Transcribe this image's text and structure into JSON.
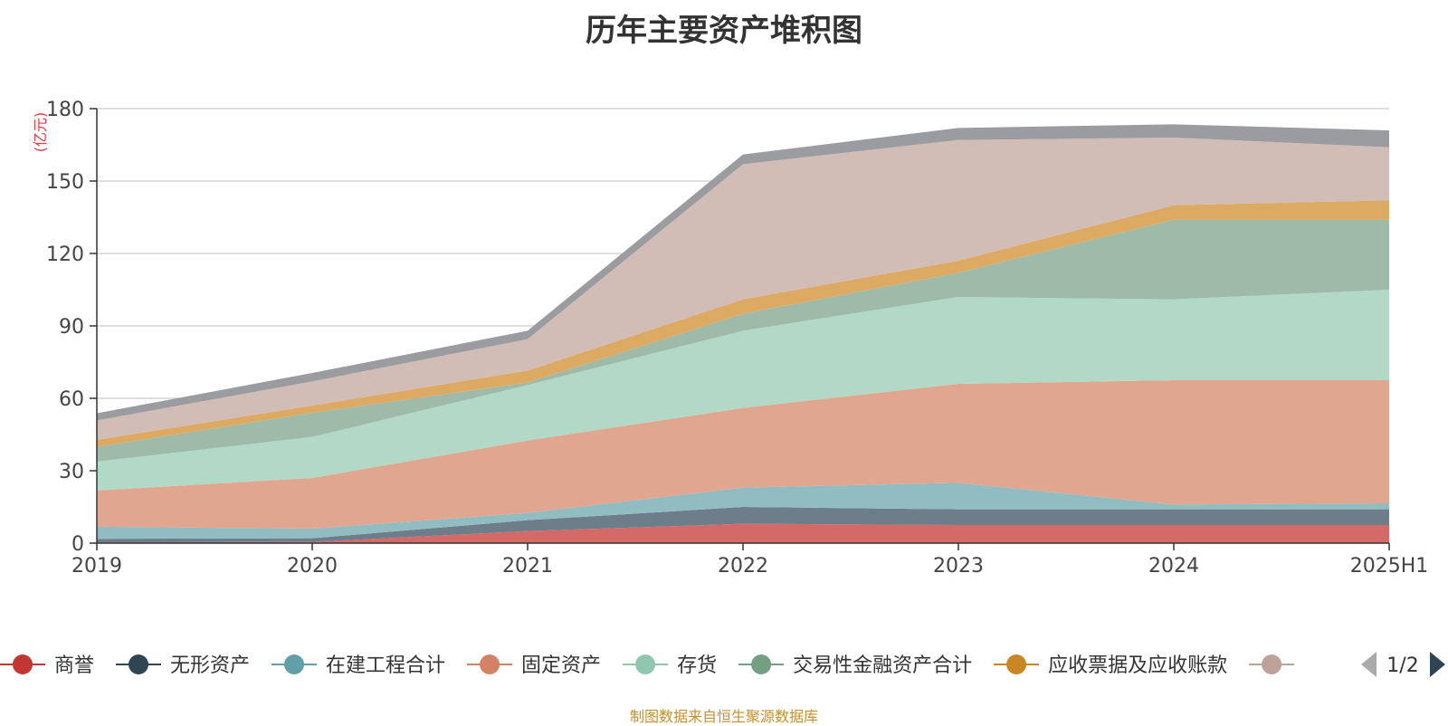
{
  "title": "历年主要资产堆积图",
  "footer": "制图数据来自恒生聚源数据库",
  "chart_data": {
    "type": "area",
    "stacked": true,
    "title": "历年主要资产堆积图",
    "ylabel": "(亿元)",
    "xlabel": "",
    "categories": [
      "2019",
      "2020",
      "2021",
      "2022",
      "2023",
      "2024",
      "2025H1"
    ],
    "ylim": [
      0,
      180
    ],
    "yticks": [
      0,
      30,
      60,
      90,
      120,
      150,
      180
    ],
    "grid": true,
    "legend_position": "bottom",
    "legend_page": "1/2",
    "series": [
      {
        "name": "商誉",
        "color": "#c23531",
        "area_color": "#d46a68",
        "values": [
          0.3,
          0.5,
          5,
          8,
          7.5,
          7.5,
          7.5
        ]
      },
      {
        "name": "无形资产",
        "color": "#2f4554",
        "area_color": "#6d7d89",
        "values": [
          1.5,
          1.5,
          4.5,
          7,
          6.5,
          6.5,
          6.5
        ]
      },
      {
        "name": "在建工程合计",
        "color": "#61a0a8",
        "area_color": "#91bcc2",
        "values": [
          5,
          4,
          3,
          8,
          11,
          2,
          2.5
        ]
      },
      {
        "name": "固定资产",
        "color": "#d48265",
        "area_color": "#e0a690",
        "values": [
          15,
          21,
          30,
          33,
          41,
          51.5,
          51
        ]
      },
      {
        "name": "存货",
        "color": "#91c7ae",
        "area_color": "#b2d8c6",
        "values": [
          12,
          17,
          23,
          32,
          36,
          33.5,
          37.5
        ]
      },
      {
        "name": "交易性金融资产合计",
        "color": "#749f83",
        "area_color": "#9dbba8",
        "values": [
          6,
          10,
          1,
          7,
          10,
          33,
          29
        ]
      },
      {
        "name": "应收票据及应收账款",
        "color": "#ca8622",
        "area_color": "#dcaa63",
        "values": [
          3,
          3,
          5,
          6,
          5,
          6,
          8
        ]
      },
      {
        "name": "",
        "color": "#bda29a",
        "area_color": "#d1bcb6",
        "values": [
          8,
          10,
          13,
          56,
          50,
          28,
          22
        ]
      },
      {
        "name": "",
        "color": "#888888",
        "area_color": "#9b9ca0",
        "values": [
          3,
          3.5,
          3.5,
          4,
          5,
          5.5,
          7
        ]
      }
    ]
  }
}
